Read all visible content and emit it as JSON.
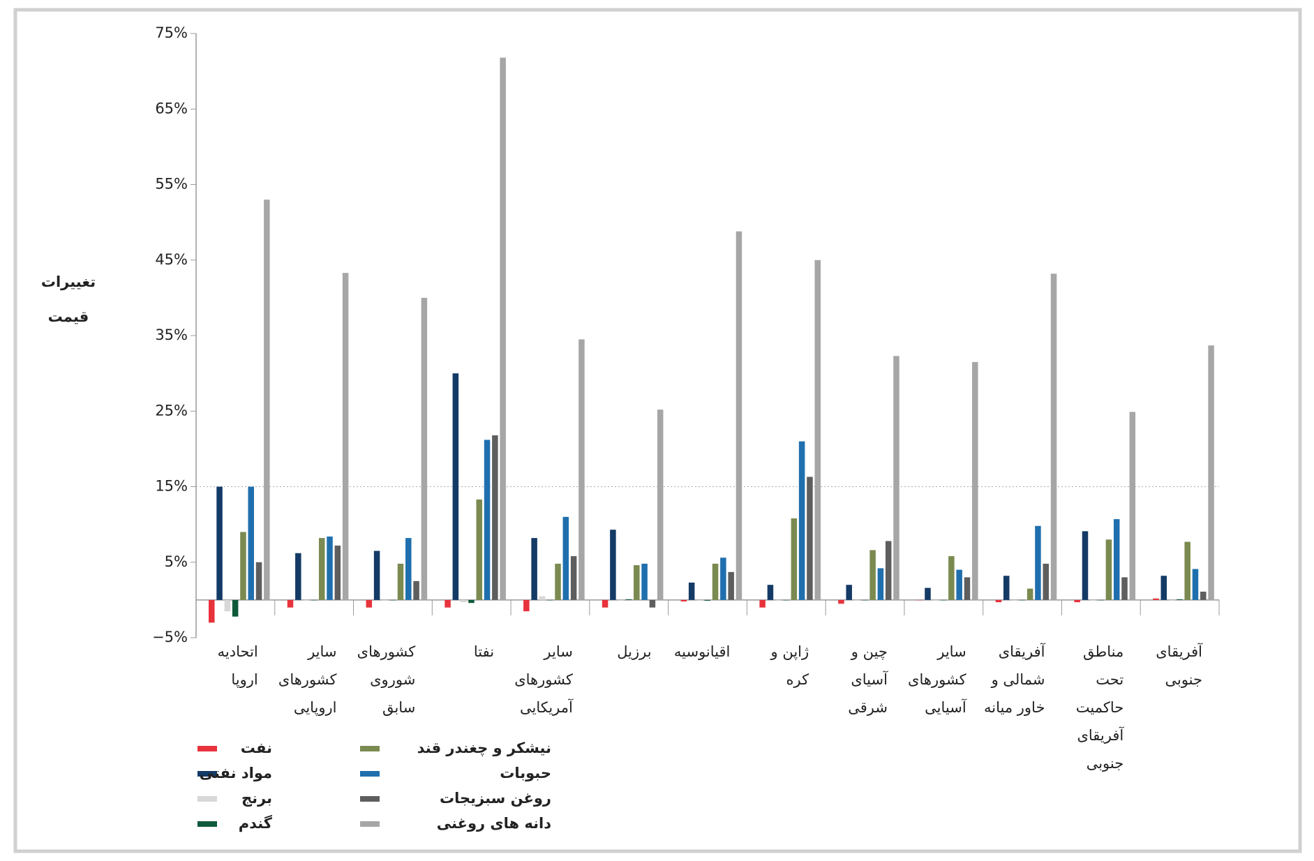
{
  "chart_data": {
    "type": "bar",
    "y_label": [
      "تغییرات",
      "قیمت"
    ],
    "categories": [
      [
        "اتحادیه",
        "اروپا"
      ],
      [
        "سایر",
        "کشورهای",
        "اروپایی"
      ],
      [
        "کشورهای",
        "شوروی",
        "سابق"
      ],
      [
        "نفتا"
      ],
      [
        "سایر",
        "کشورهای",
        "آمریکایی"
      ],
      [
        "برزیل"
      ],
      [
        "اقیانوسیه"
      ],
      [
        "ژاپن و",
        "کره"
      ],
      [
        "چین و",
        "آسیای",
        "شرقی"
      ],
      [
        "سایر",
        "کشورهای",
        "آسیایی"
      ],
      [
        "آفریقای",
        "شمالی و",
        "خاور میانه"
      ],
      [
        "مناطق",
        "تحت",
        "حاکمیت",
        "آفریقای",
        "جنوبی"
      ],
      [
        "آفریقای",
        "جنوبی"
      ]
    ],
    "series": [
      {
        "name": "نفت",
        "color": "#e8323c",
        "values": [
          -3,
          -1,
          -1,
          -1,
          -1.5,
          -1,
          -0.2,
          -1,
          -0.5,
          0,
          -0.3,
          -0.3,
          0.2
        ]
      },
      {
        "name": "مواد نفتی",
        "color": "#143a66",
        "values": [
          15,
          6.2,
          6.5,
          30,
          8.2,
          9.3,
          2.3,
          2,
          2,
          1.6,
          3.2,
          9.1,
          3.2
        ]
      },
      {
        "name": "برنج",
        "color": "#d8d8d8",
        "values": [
          -1.5,
          0,
          0,
          -0.3,
          0.5,
          0,
          0,
          0,
          0,
          0,
          0,
          0,
          0
        ]
      },
      {
        "name": "گندم",
        "color": "#0e5a3a",
        "values": [
          -2.2,
          0,
          0,
          -0.4,
          0,
          0.1,
          -0.1,
          0,
          0,
          0,
          0,
          0,
          0.1
        ]
      },
      {
        "name": "نیشکر و چغندر قند",
        "color": "#7a8a50",
        "values": [
          9,
          8.2,
          4.8,
          13.3,
          4.8,
          4.6,
          4.8,
          10.8,
          6.6,
          5.8,
          1.5,
          8,
          7.7
        ]
      },
      {
        "name": "حبوبات",
        "color": "#1f6fae",
        "values": [
          15,
          8.4,
          8.2,
          21.2,
          11,
          4.8,
          5.6,
          21,
          4.2,
          4,
          9.8,
          10.7,
          4.1
        ]
      },
      {
        "name": "روغن سبزیجات",
        "color": "#5e5e5e",
        "values": [
          5,
          7.2,
          2.5,
          21.8,
          5.8,
          -1,
          3.7,
          16.3,
          7.8,
          3,
          4.8,
          3,
          1.1
        ]
      },
      {
        "name": "دانه های روغنی",
        "color": "#a6a6a6",
        "values": [
          53,
          43.3,
          40,
          71.8,
          34.5,
          25.2,
          48.8,
          45,
          32.3,
          31.5,
          43.2,
          24.9,
          33.7
        ]
      }
    ],
    "ylim": [
      -5,
      75
    ],
    "yticks": [
      {
        "value": -5,
        "label": "−5%"
      },
      {
        "value": 5,
        "label": "5%"
      },
      {
        "value": 15,
        "label": "15%"
      },
      {
        "value": 25,
        "label": "25%"
      },
      {
        "value": 35,
        "label": "35%"
      },
      {
        "value": 45,
        "label": "45%"
      },
      {
        "value": 55,
        "label": "55%"
      },
      {
        "value": 65,
        "label": "65%"
      },
      {
        "value": 75,
        "label": "75%"
      }
    ],
    "reference_line": 15
  }
}
